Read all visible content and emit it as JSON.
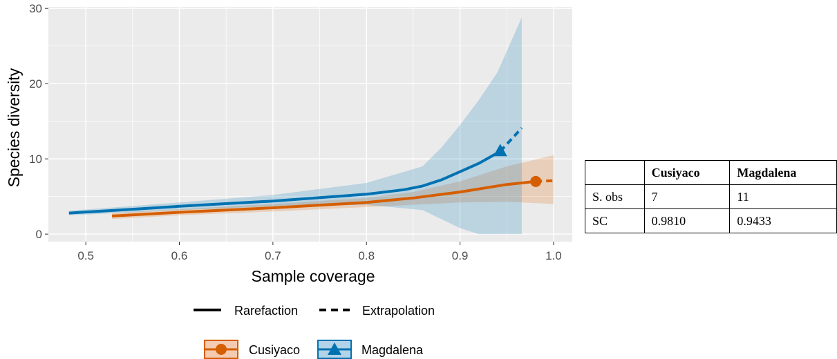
{
  "chart_data": {
    "type": "line",
    "xlabel": "Sample coverage",
    "ylabel": "Species diversity",
    "xlim": [
      0.46,
      1.02
    ],
    "ylim": [
      -1,
      30.2
    ],
    "xticks": [
      "0.5",
      "0.6",
      "0.7",
      "0.8",
      "0.9",
      "1.0"
    ],
    "xtick_values": [
      0.5,
      0.6,
      0.7,
      0.8,
      0.9,
      1.0
    ],
    "yticks": [
      "0",
      "10",
      "20",
      "30"
    ],
    "ytick_values": [
      0,
      10,
      20,
      30
    ],
    "grid": true,
    "series": [
      {
        "name": "Cusiyaco",
        "color": "#D55E00",
        "marker": "circle",
        "observed": {
          "x": 0.981,
          "y": 7
        },
        "rarefaction": {
          "x": [
            0.528,
            0.6,
            0.7,
            0.8,
            0.85,
            0.9,
            0.95,
            0.981
          ],
          "y": [
            2.4,
            2.9,
            3.5,
            4.2,
            4.8,
            5.6,
            6.6,
            7.0
          ]
        },
        "extrapolation": {
          "x": [
            0.981,
            1.0
          ],
          "y": [
            7.0,
            7.1
          ]
        },
        "ci_lower": {
          "x": [
            0.528,
            0.6,
            0.7,
            0.8,
            0.85,
            0.9,
            0.95,
            1.0
          ],
          "y": [
            2.0,
            2.5,
            3.0,
            3.6,
            3.9,
            4.2,
            4.3,
            4.0
          ]
        },
        "ci_upper": {
          "x": [
            0.528,
            0.6,
            0.7,
            0.8,
            0.85,
            0.9,
            0.95,
            1.0
          ],
          "y": [
            2.8,
            3.3,
            4.0,
            4.8,
            5.6,
            7.0,
            9.0,
            10.5
          ]
        }
      },
      {
        "name": "Magdalena",
        "color": "#0072B2",
        "marker": "triangle",
        "observed": {
          "x": 0.943,
          "y": 11
        },
        "rarefaction": {
          "x": [
            0.482,
            0.55,
            0.6,
            0.7,
            0.8,
            0.84,
            0.86,
            0.88,
            0.9,
            0.92,
            0.943
          ],
          "y": [
            2.8,
            3.3,
            3.7,
            4.4,
            5.3,
            5.9,
            6.4,
            7.2,
            8.3,
            9.4,
            11.0
          ]
        },
        "extrapolation": {
          "x": [
            0.943,
            0.966
          ],
          "y": [
            11.0,
            14.1
          ]
        },
        "ci_lower": {
          "x": [
            0.482,
            0.6,
            0.7,
            0.8,
            0.86,
            0.88,
            0.9,
            0.92,
            0.94,
            0.966
          ],
          "y": [
            2.5,
            3.2,
            3.7,
            3.9,
            3.2,
            2.0,
            0.8,
            0.0,
            0.0,
            0.0
          ]
        },
        "ci_upper": {
          "x": [
            0.482,
            0.6,
            0.7,
            0.8,
            0.86,
            0.88,
            0.9,
            0.92,
            0.94,
            0.966
          ],
          "y": [
            3.1,
            4.2,
            5.2,
            6.8,
            9.0,
            11.5,
            14.5,
            17.8,
            21.5,
            28.8
          ]
        }
      }
    ],
    "legend": {
      "position": "bottom",
      "linetypes": [
        "Rarefaction",
        "Extrapolation"
      ],
      "groups": [
        "Cusiyaco",
        "Magdalena"
      ]
    }
  },
  "table": {
    "headers": [
      "",
      "Cusiyaco",
      "Magdalena"
    ],
    "rows": [
      [
        "S. obs",
        "7",
        "11"
      ],
      [
        "SC",
        "0.9810",
        "0.9433"
      ]
    ]
  },
  "colors": {
    "panel_background": "#EBEBEB",
    "grid": "#FFFFFF",
    "cusiyaco": "#D55E00",
    "magdalena": "#0072B2"
  }
}
